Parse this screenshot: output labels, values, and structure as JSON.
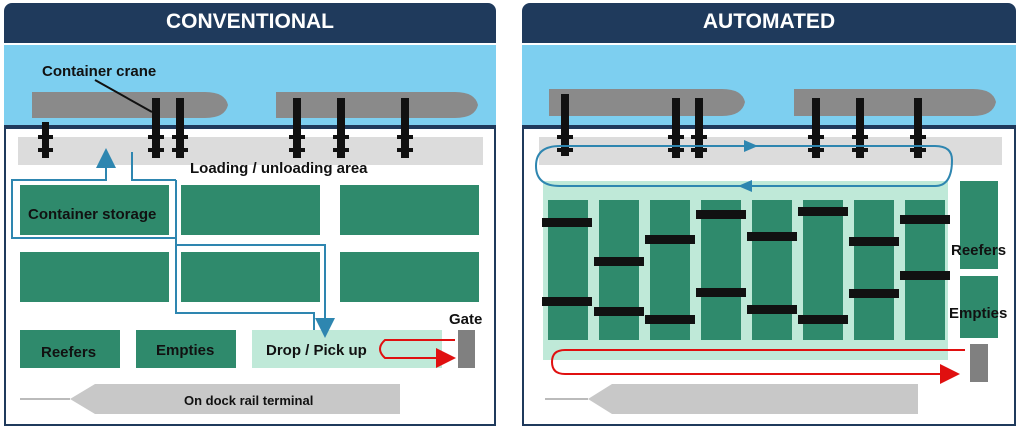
{
  "conventional": {
    "title": "CONVENTIONAL",
    "labels": {
      "crane": "Container crane",
      "loading_area": "Loading / unloading area",
      "storage": "Container storage",
      "reefers": "Reefers",
      "empties": "Empties",
      "drop_pickup": "Drop / Pick up",
      "gate": "Gate",
      "rail": "On dock rail terminal"
    }
  },
  "automated": {
    "title": "AUTOMATED",
    "labels": {
      "reefers": "Reefers",
      "empties": "Empties"
    }
  },
  "colors": {
    "water": "#7dcff0",
    "ship": "#8a8a8a",
    "crane": "#111111",
    "storage": "#2f8a6c",
    "apron": "#dcdcdc",
    "drop_area": "#bfe9d8",
    "blue_path": "#2e86b0",
    "red_path": "#e01010",
    "title_bar": "#1f3a5c",
    "quay_line": "#1f3a5c"
  },
  "icons": [
    "ship-icon",
    "crane-icon",
    "gate-icon",
    "train-icon",
    "arrow-icon"
  ]
}
